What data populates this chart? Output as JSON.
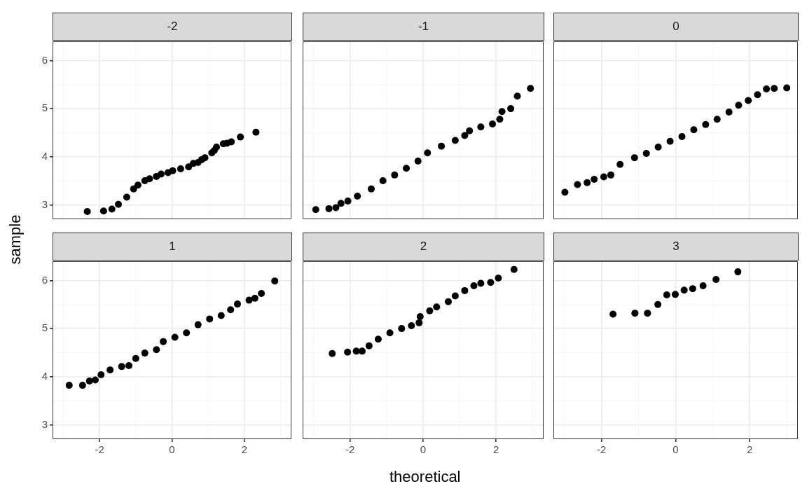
{
  "chart_data": [
    {
      "type": "scatter",
      "title": "-2",
      "ylabel": "sample",
      "xlim": [
        -3.3,
        3.3
      ],
      "ylim": [
        2.7,
        6.4
      ],
      "xticks": [
        -2,
        0,
        2
      ],
      "yticks": [
        3,
        4,
        5,
        6
      ],
      "tick_labels": "y",
      "grid": true,
      "marker": "circle",
      "color": "#000000",
      "x": [
        -2.34,
        -1.89,
        -1.66,
        -1.48,
        -1.25,
        -1.06,
        -0.94,
        -0.75,
        -0.62,
        -0.43,
        -0.3,
        -0.11,
        0.02,
        0.24,
        0.46,
        0.59,
        0.72,
        0.82,
        0.91,
        1.1,
        1.17,
        1.23,
        1.42,
        1.52,
        1.64,
        1.89,
        2.32
      ],
      "values": [
        2.86,
        2.87,
        2.91,
        3.01,
        3.16,
        3.33,
        3.41,
        3.5,
        3.54,
        3.59,
        3.64,
        3.67,
        3.71,
        3.75,
        3.79,
        3.86,
        3.88,
        3.94,
        3.98,
        4.08,
        4.13,
        4.2,
        4.27,
        4.28,
        4.31,
        4.41,
        4.51
      ]
    },
    {
      "type": "scatter",
      "title": "-1",
      "xlim": [
        -3.3,
        3.3
      ],
      "ylim": [
        2.7,
        6.4
      ],
      "xticks": [
        -2,
        0,
        2
      ],
      "yticks": [
        3,
        4,
        5,
        6
      ],
      "tick_labels": false,
      "grid": true,
      "marker": "circle",
      "color": "#000000",
      "x": [
        -2.94,
        -2.58,
        -2.39,
        -2.25,
        -2.06,
        -1.8,
        -1.42,
        -1.1,
        -0.78,
        -0.46,
        -0.14,
        0.12,
        0.5,
        0.88,
        1.14,
        1.27,
        1.58,
        1.9,
        2.1,
        2.16,
        2.4,
        2.58,
        2.94
      ],
      "values": [
        2.9,
        2.92,
        2.94,
        3.03,
        3.08,
        3.18,
        3.33,
        3.5,
        3.62,
        3.76,
        3.91,
        4.08,
        4.22,
        4.34,
        4.44,
        4.54,
        4.62,
        4.68,
        4.78,
        4.94,
        5.0,
        5.26,
        5.42
      ]
    },
    {
      "type": "scatter",
      "title": "0",
      "xlim": [
        -3.3,
        3.3
      ],
      "ylim": [
        2.7,
        6.4
      ],
      "xticks": [
        -2,
        0,
        2
      ],
      "yticks": [
        3,
        4,
        5,
        6
      ],
      "tick_labels": false,
      "grid": true,
      "marker": "circle",
      "color": "#000000",
      "x": [
        -2.99,
        -2.65,
        -2.39,
        -2.2,
        -1.94,
        -1.75,
        -1.5,
        -1.11,
        -0.79,
        -0.47,
        -0.15,
        0.17,
        0.49,
        0.81,
        1.12,
        1.44,
        1.7,
        1.96,
        2.21,
        2.45,
        2.66,
        3.0
      ],
      "values": [
        3.26,
        3.42,
        3.46,
        3.53,
        3.58,
        3.62,
        3.84,
        3.98,
        4.07,
        4.2,
        4.32,
        4.42,
        4.56,
        4.67,
        4.78,
        4.93,
        5.07,
        5.17,
        5.29,
        5.41,
        5.42,
        5.43
      ]
    },
    {
      "type": "scatter",
      "title": "1",
      "xlim": [
        -3.3,
        3.3
      ],
      "ylim": [
        2.7,
        6.4
      ],
      "xticks": [
        -2,
        0,
        2
      ],
      "yticks": [
        3,
        4,
        5,
        6
      ],
      "grid": true,
      "marker": "circle",
      "color": "#000000",
      "x": [
        -2.84,
        -2.47,
        -2.28,
        -2.12,
        -1.96,
        -1.71,
        -1.39,
        -1.19,
        -1.0,
        -0.75,
        -0.43,
        -0.24,
        0.08,
        0.4,
        0.72,
        1.04,
        1.36,
        1.62,
        1.81,
        2.13,
        2.29,
        2.47,
        2.84
      ],
      "values": [
        3.82,
        3.82,
        3.91,
        3.93,
        4.04,
        4.14,
        4.21,
        4.23,
        4.38,
        4.49,
        4.56,
        4.73,
        4.82,
        4.91,
        5.08,
        5.2,
        5.27,
        5.39,
        5.51,
        5.59,
        5.63,
        5.73,
        5.99
      ]
    },
    {
      "type": "scatter",
      "title": "2",
      "xlabel": "theoretical",
      "xlim": [
        -3.3,
        3.3
      ],
      "ylim": [
        2.7,
        6.4
      ],
      "xticks": [
        -2,
        0,
        2
      ],
      "yticks": [
        3,
        4,
        5,
        6
      ],
      "tick_labels": "x",
      "grid": true,
      "marker": "circle",
      "color": "#000000",
      "x": [
        -2.49,
        -2.07,
        -1.83,
        -1.67,
        -1.48,
        -1.23,
        -0.91,
        -0.59,
        -0.32,
        -0.11,
        -0.08,
        0.18,
        0.37,
        0.69,
        0.88,
        1.14,
        1.39,
        1.58,
        1.85,
        2.06,
        2.49
      ],
      "values": [
        4.48,
        4.51,
        4.53,
        4.53,
        4.64,
        4.78,
        4.91,
        5.0,
        5.06,
        5.12,
        5.25,
        5.37,
        5.45,
        5.56,
        5.68,
        5.79,
        5.89,
        5.94,
        5.96,
        6.05,
        6.23
      ]
    },
    {
      "type": "scatter",
      "title": "3",
      "xlim": [
        -3.3,
        3.3
      ],
      "ylim": [
        2.7,
        6.4
      ],
      "xticks": [
        -2,
        0,
        2
      ],
      "yticks": [
        3,
        4,
        5,
        6
      ],
      "tick_labels": "x",
      "grid": true,
      "marker": "circle",
      "color": "#000000",
      "x": [
        -1.69,
        -1.1,
        -0.76,
        -0.48,
        -0.24,
        -0.01,
        0.23,
        0.46,
        0.74,
        1.09,
        1.68
      ],
      "values": [
        5.3,
        5.32,
        5.32,
        5.5,
        5.7,
        5.71,
        5.8,
        5.83,
        5.89,
        6.02,
        6.18
      ]
    }
  ]
}
